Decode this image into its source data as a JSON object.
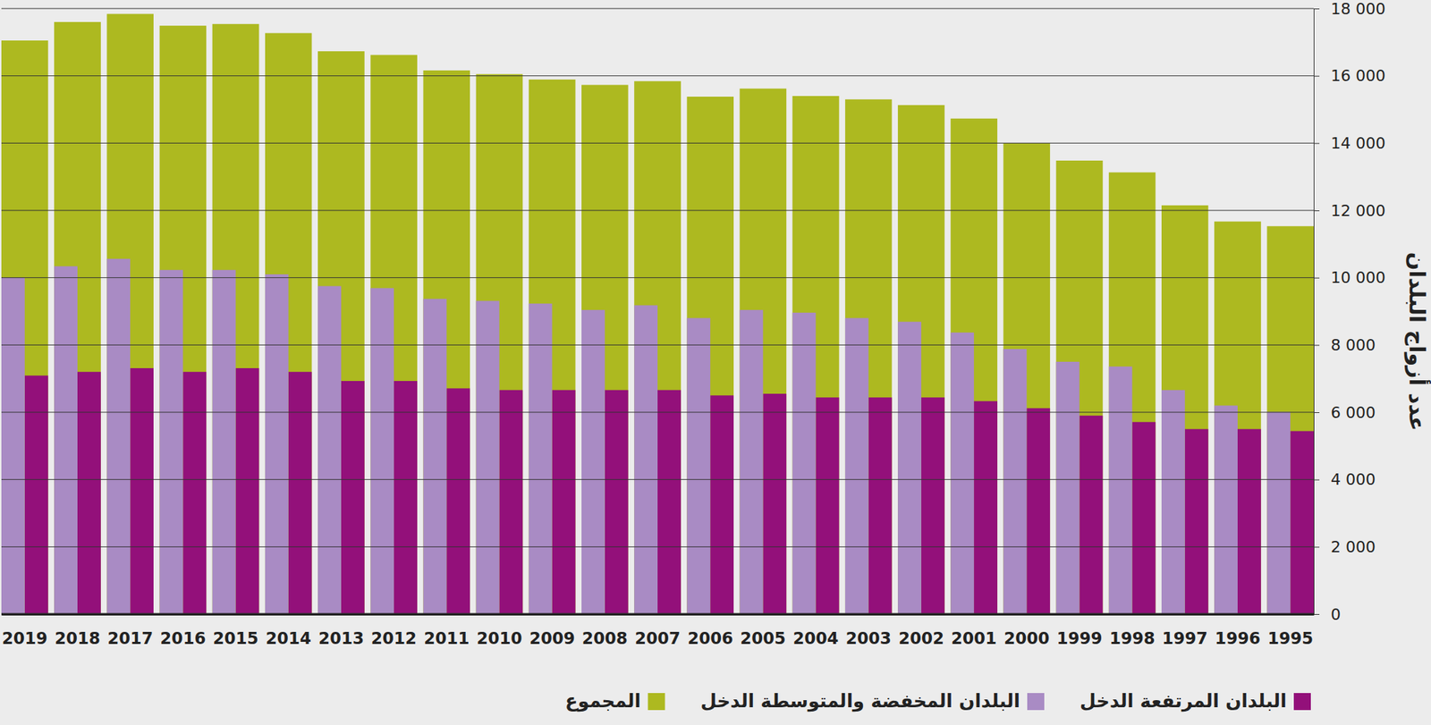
{
  "chart_data": {
    "type": "bar",
    "y_label": "عدد أزواج البلدان",
    "categories": [
      "2019",
      "2018",
      "2017",
      "2016",
      "2015",
      "2014",
      "2013",
      "2012",
      "2011",
      "2010",
      "2009",
      "2008",
      "2007",
      "2006",
      "2005",
      "2004",
      "2003",
      "2002",
      "2001",
      "2000",
      "1999",
      "1998",
      "1997",
      "1996",
      "1995"
    ],
    "series": [
      {
        "name": "البلدان المرتفعة الدخل",
        "color": "#93107a",
        "values": [
          7090,
          7200,
          7310,
          7200,
          7310,
          7200,
          6930,
          6930,
          6710,
          6660,
          6660,
          6660,
          6660,
          6500,
          6550,
          6440,
          6440,
          6440,
          6330,
          6120,
          5900,
          5710,
          5500,
          5500,
          5440
        ]
      },
      {
        "name": "البلدان المخفضة والمتوسطة الدخل",
        "color": "#a98bc4",
        "values": [
          10000,
          10340,
          10560,
          10230,
          10230,
          10100,
          9750,
          9690,
          9370,
          9310,
          9230,
          9040,
          9180,
          8800,
          9040,
          8960,
          8800,
          8690,
          8370,
          7880,
          7500,
          7360,
          6660,
          6200,
          6010
        ]
      },
      {
        "name": "المجموع",
        "color": "#adb920",
        "values": [
          17050,
          17600,
          17840,
          17490,
          17540,
          17270,
          16730,
          16620,
          16160,
          16050,
          15890,
          15730,
          15840,
          15380,
          15620,
          15400,
          15300,
          15130,
          14730,
          14000,
          13480,
          13130,
          12150,
          11670,
          11530
        ]
      }
    ],
    "ylim": [
      0,
      18000
    ],
    "yticks": [
      0,
      {
        "value": 2000,
        "label": "2 000"
      },
      {
        "value": 4000,
        "label": "4 000"
      },
      {
        "value": 6000,
        "label": "6 000"
      },
      {
        "value": 8000,
        "label": "8 000"
      },
      {
        "value": 10000,
        "label": "10 000"
      },
      {
        "value": 12000,
        "label": "12 000"
      },
      {
        "value": 14000,
        "label": "14 000"
      },
      {
        "value": 16000,
        "label": "16 000"
      },
      {
        "value": 18000,
        "label": "18 000"
      }
    ],
    "grid": true,
    "legend": "bottom"
  }
}
